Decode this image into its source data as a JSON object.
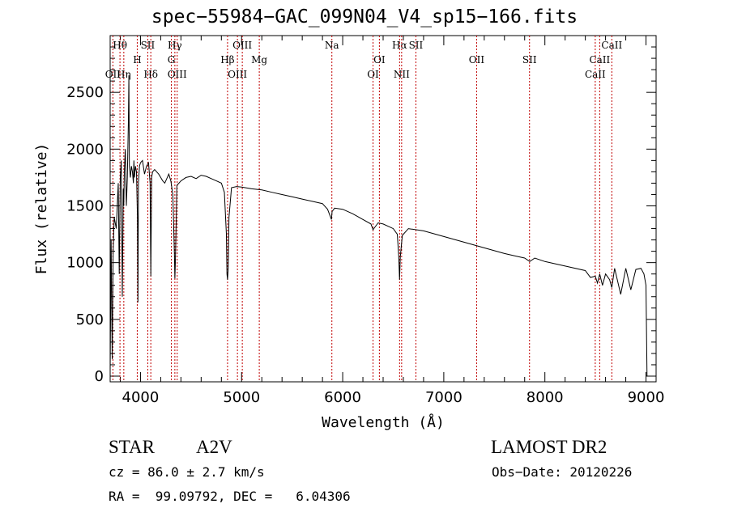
{
  "chart_data": {
    "type": "line",
    "title": "spec−55984−GAC_099N04_V4_sp15−166.fits",
    "xlabel": "Wavelength (Å)",
    "ylabel": "Flux (relative)",
    "xlim": [
      3700,
      9100
    ],
    "ylim": [
      -50,
      3000
    ],
    "xticks": [
      4000,
      5000,
      6000,
      7000,
      8000,
      9000
    ],
    "yticks": [
      0,
      500,
      1000,
      1500,
      2000,
      2500
    ],
    "grid": false,
    "series": [
      {
        "x": [
          3700,
          3710,
          3720,
          3730,
          3740,
          3760,
          3780,
          3790,
          3800,
          3810,
          3820,
          3830,
          3835,
          3840,
          3850,
          3860,
          3870,
          3880,
          3885,
          3890,
          3900,
          3910,
          3920,
          3930,
          3935,
          3940,
          3950,
          3960,
          3970,
          3975,
          3980,
          3990,
          4000,
          4020,
          4040,
          4060,
          4080,
          4095,
          4102,
          4110,
          4120,
          4140,
          4160,
          4180,
          4200,
          4220,
          4240,
          4260,
          4280,
          4300,
          4320,
          4335,
          4340,
          4345,
          4360,
          4380,
          4400,
          4450,
          4500,
          4550,
          4600,
          4650,
          4700,
          4750,
          4800,
          4830,
          4850,
          4855,
          4861,
          4867,
          4875,
          4900,
          4950,
          5000,
          5100,
          5200,
          5300,
          5400,
          5500,
          5600,
          5700,
          5800,
          5850,
          5889,
          5895,
          5920,
          6000,
          6100,
          6200,
          6280,
          6300,
          6350,
          6400,
          6500,
          6540,
          6555,
          6563,
          6570,
          6590,
          6650,
          6800,
          7000,
          7200,
          7400,
          7600,
          7700,
          7800,
          7850,
          7900,
          8000,
          8200,
          8400,
          8450,
          8498,
          8520,
          8542,
          8570,
          8600,
          8640,
          8662,
          8690,
          8750,
          8800,
          8850,
          8900,
          8950,
          8980,
          9000,
          9010
        ],
        "y": [
          50,
          1200,
          150,
          1100,
          1400,
          1300,
          1700,
          900,
          1750,
          1900,
          700,
          1650,
          1500,
          1800,
          2000,
          1500,
          1750,
          2250,
          2650,
          1850,
          1750,
          1850,
          1800,
          1700,
          1900,
          1750,
          1850,
          1800,
          1400,
          650,
          1700,
          1850,
          1880,
          1900,
          1780,
          1850,
          1880,
          1700,
          880,
          1750,
          1800,
          1820,
          1800,
          1780,
          1750,
          1720,
          1700,
          1740,
          1780,
          1720,
          1600,
          1080,
          860,
          1000,
          1680,
          1700,
          1720,
          1750,
          1760,
          1740,
          1770,
          1760,
          1740,
          1720,
          1700,
          1620,
          1250,
          900,
          850,
          950,
          1400,
          1660,
          1670,
          1665,
          1650,
          1640,
          1620,
          1600,
          1580,
          1560,
          1540,
          1520,
          1470,
          1380,
          1450,
          1480,
          1470,
          1430,
          1380,
          1340,
          1290,
          1350,
          1340,
          1300,
          1250,
          1050,
          850,
          1050,
          1240,
          1300,
          1280,
          1230,
          1180,
          1130,
          1080,
          1060,
          1040,
          1010,
          1040,
          1010,
          970,
          930,
          870,
          880,
          820,
          900,
          800,
          900,
          850,
          780,
          950,
          720,
          950,
          760,
          940,
          950,
          900,
          800,
          0
        ]
      }
    ],
    "lines": [
      {
        "name": "OII",
        "wl": 3727,
        "level": 3
      },
      {
        "name": "Hη",
        "wl": 3835,
        "level": 3
      },
      {
        "name": "Hθ",
        "wl": 3797,
        "level": 1
      },
      {
        "name": "SII",
        "wl": 4072,
        "level": 1
      },
      {
        "name": "H",
        "wl": 3968,
        "level": 2
      },
      {
        "name": "Hδ",
        "wl": 4102,
        "level": 3
      },
      {
        "name": "Hγ",
        "wl": 4340,
        "level": 1
      },
      {
        "name": "G",
        "wl": 4305,
        "level": 2
      },
      {
        "name": "OIII",
        "wl": 4363,
        "level": 3
      },
      {
        "name": "OIII",
        "wl": 5007,
        "level": 1
      },
      {
        "name": "Hβ",
        "wl": 4861,
        "level": 2
      },
      {
        "name": "OIII",
        "wl": 4959,
        "level": 3
      },
      {
        "name": "Mg",
        "wl": 5175,
        "level": 2
      },
      {
        "name": "Na",
        "wl": 5893,
        "level": 1
      },
      {
        "name": "OI",
        "wl": 6363,
        "level": 2
      },
      {
        "name": "OI",
        "wl": 6300,
        "level": 3
      },
      {
        "name": "Hα",
        "wl": 6563,
        "level": 1
      },
      {
        "name": "SII",
        "wl": 6724,
        "level": 1
      },
      {
        "name": "NII",
        "wl": 6583,
        "level": 3
      },
      {
        "name": "OII",
        "wl": 7325,
        "level": 2
      },
      {
        "name": "SII",
        "wl": 7848,
        "level": 2
      },
      {
        "name": "CaII",
        "wl": 8662,
        "level": 1
      },
      {
        "name": "CaII",
        "wl": 8542,
        "level": 2
      },
      {
        "name": "CaII",
        "wl": 8498,
        "level": 3
      }
    ]
  },
  "info": {
    "object_type": "STAR",
    "subclass": "A2V",
    "survey": "LAMOST DR2",
    "cz": "cz = 86.0 ± 2.7 km/s",
    "obs_date": "Obs−Date: 20120226",
    "coords": "RA =  99.09792, DEC =   6.04306"
  },
  "colors": {
    "spectrum": "#000000",
    "line_marker": "#c00000",
    "background": "#ffffff"
  }
}
